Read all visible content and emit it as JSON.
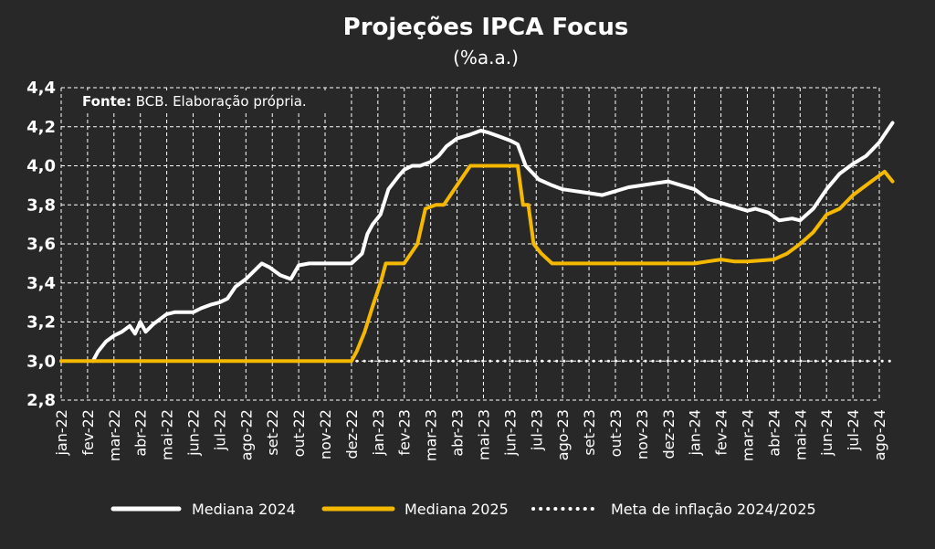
{
  "chart_data": {
    "type": "line",
    "title": "Projeções IPCA Focus",
    "subtitle": "(%a.a.)",
    "source_label": "Fonte:",
    "source_text": " BCB. Elaboração própria.",
    "ylim": [
      2.8,
      4.4
    ],
    "yticks": [
      "2,8",
      "3,0",
      "3,2",
      "3,4",
      "3,6",
      "3,8",
      "4,0",
      "4,2",
      "4,4"
    ],
    "categories": [
      "jan-22",
      "fev-22",
      "mar-22",
      "abr-22",
      "mai-22",
      "jun-22",
      "jul-22",
      "ago-22",
      "set-22",
      "out-22",
      "nov-22",
      "dez-22",
      "jan-23",
      "fev-23",
      "mar-23",
      "abr-23",
      "mai-23",
      "jun-23",
      "jul-23",
      "ago-23",
      "set-23",
      "out-23",
      "nov-23",
      "dez-23",
      "jan-24",
      "fev-24",
      "mar-24",
      "abr-24",
      "mai-24",
      "jun-24",
      "jul-24",
      "ago-24"
    ],
    "grid": true,
    "legend_position": "bottom",
    "colors": {
      "background": "#282828",
      "grid": "#ffffff",
      "mediana_2024": "#ffffff",
      "mediana_2025": "#f5b800",
      "meta": "#ffffff"
    },
    "series": [
      {
        "name": "Mediana 2024",
        "x": [
          1.2,
          1.4,
          1.7,
          2.0,
          2.3,
          2.6,
          2.8,
          3.0,
          3.2,
          3.5,
          3.8,
          4.0,
          4.3,
          4.6,
          5.0,
          5.3,
          5.7,
          6.0,
          6.3,
          6.6,
          7.0,
          7.3,
          7.6,
          7.9,
          8.3,
          8.7,
          9.0,
          9.4,
          9.7,
          10.0,
          10.5,
          11.0,
          11.4,
          11.6,
          11.8,
          12.1,
          12.4,
          12.8,
          13.0,
          13.3,
          13.6,
          14.0,
          14.3,
          14.6,
          15.0,
          15.5,
          15.9,
          16.2,
          16.6,
          17.0,
          17.3,
          17.6,
          18.1,
          18.6,
          19.0,
          19.5,
          20.0,
          20.5,
          21.0,
          21.5,
          22.0,
          22.5,
          23.0,
          23.5,
          24.0,
          24.5,
          25.0,
          25.5,
          26.0,
          26.3,
          26.8,
          27.2,
          27.7,
          28.0,
          28.5,
          29.0,
          29.5,
          30.0,
          30.5,
          31.0,
          31.3,
          31.5
        ],
        "values": [
          3.0,
          3.05,
          3.1,
          3.13,
          3.15,
          3.18,
          3.14,
          3.2,
          3.15,
          3.19,
          3.22,
          3.24,
          3.25,
          3.25,
          3.25,
          3.27,
          3.29,
          3.3,
          3.32,
          3.38,
          3.42,
          3.46,
          3.5,
          3.48,
          3.44,
          3.42,
          3.49,
          3.5,
          3.5,
          3.5,
          3.5,
          3.5,
          3.55,
          3.65,
          3.7,
          3.75,
          3.88,
          3.95,
          3.98,
          4.0,
          4.0,
          4.02,
          4.05,
          4.1,
          4.14,
          4.16,
          4.18,
          4.17,
          4.15,
          4.13,
          4.11,
          4.0,
          3.93,
          3.9,
          3.88,
          3.87,
          3.86,
          3.85,
          3.87,
          3.89,
          3.9,
          3.91,
          3.92,
          3.9,
          3.88,
          3.83,
          3.81,
          3.79,
          3.77,
          3.78,
          3.76,
          3.72,
          3.73,
          3.72,
          3.78,
          3.88,
          3.96,
          4.01,
          4.05,
          4.12,
          4.18,
          4.22
        ]
      },
      {
        "name": "Mediana 2025",
        "x": [
          0.0,
          11.0,
          11.2,
          11.5,
          11.8,
          12.1,
          12.3,
          12.6,
          13.0,
          13.5,
          13.8,
          14.2,
          14.5,
          15.0,
          15.5,
          16.0,
          16.5,
          17.0,
          17.3,
          17.5,
          17.7,
          17.9,
          18.2,
          18.6,
          19.0,
          20.0,
          21.0,
          22.0,
          23.0,
          24.0,
          24.5,
          25.0,
          25.5,
          26.0,
          27.0,
          27.5,
          28.0,
          28.5,
          29.0,
          29.5,
          30.0,
          30.5,
          31.0,
          31.2,
          31.5
        ],
        "values": [
          3.0,
          3.0,
          3.05,
          3.15,
          3.28,
          3.4,
          3.5,
          3.5,
          3.5,
          3.6,
          3.78,
          3.8,
          3.8,
          3.9,
          4.0,
          4.0,
          4.0,
          4.0,
          4.0,
          3.8,
          3.8,
          3.6,
          3.55,
          3.5,
          3.5,
          3.5,
          3.5,
          3.5,
          3.5,
          3.5,
          3.51,
          3.52,
          3.51,
          3.51,
          3.52,
          3.55,
          3.6,
          3.66,
          3.75,
          3.78,
          3.85,
          3.9,
          3.95,
          3.97,
          3.92
        ]
      },
      {
        "name": "Meta de inflação 2024/2025",
        "x": [
          0.0,
          31.5
        ],
        "values": [
          3.0,
          3.0
        ]
      }
    ]
  }
}
